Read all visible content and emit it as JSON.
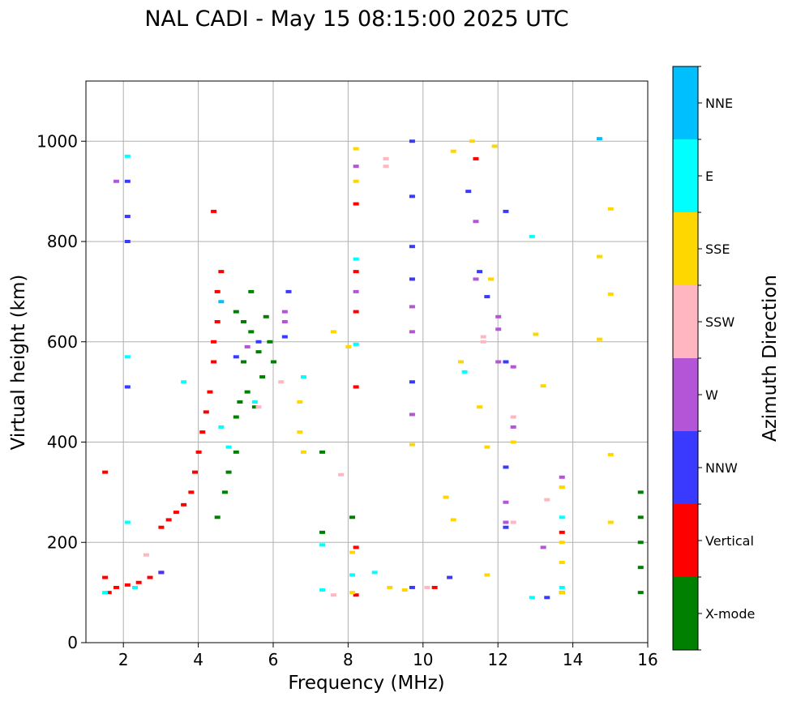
{
  "chart_data": {
    "type": "scatter",
    "title": "NAL CADI - May 15 08:15:00 2025 UTC",
    "xlabel": "Frequency (MHz)",
    "ylabel": "Virtual height (km)",
    "xlim": [
      1,
      16
    ],
    "ylim": [
      0,
      1120
    ],
    "xticks": [
      2,
      4,
      6,
      8,
      10,
      12,
      14,
      16
    ],
    "yticks": [
      0,
      200,
      400,
      600,
      800,
      1000
    ],
    "grid": true,
    "colorbar": {
      "label": "Azimuth Direction",
      "categories": [
        {
          "name": "X-mode",
          "color": "#008000"
        },
        {
          "name": "Vertical",
          "color": "#ff0000"
        },
        {
          "name": "NNW",
          "color": "#3a3aff"
        },
        {
          "name": "W",
          "color": "#b455d8"
        },
        {
          "name": "SSW",
          "color": "#ffb6c1"
        },
        {
          "name": "SSE",
          "color": "#ffd700"
        },
        {
          "name": "E",
          "color": "#00ffff"
        },
        {
          "name": "NNE",
          "color": "#00bfff"
        }
      ]
    },
    "series": [
      {
        "name": "X-mode",
        "points": [
          [
            4.5,
            250
          ],
          [
            4.7,
            300
          ],
          [
            4.8,
            340
          ],
          [
            5.0,
            380
          ],
          [
            5.0,
            450
          ],
          [
            5.1,
            480
          ],
          [
            5.2,
            560
          ],
          [
            5.3,
            500
          ],
          [
            5.4,
            620
          ],
          [
            5.5,
            470
          ],
          [
            5.6,
            580
          ],
          [
            5.7,
            530
          ],
          [
            5.8,
            650
          ],
          [
            5.9,
            600
          ],
          [
            6.0,
            560
          ],
          [
            5.2,
            640
          ],
          [
            5.4,
            700
          ],
          [
            5.0,
            660
          ],
          [
            7.3,
            380
          ],
          [
            7.3,
            220
          ],
          [
            8.1,
            250
          ],
          [
            15.8,
            300
          ],
          [
            15.8,
            250
          ],
          [
            15.8,
            200
          ],
          [
            15.8,
            150
          ],
          [
            15.8,
            100
          ]
        ]
      },
      {
        "name": "Vertical",
        "points": [
          [
            1.5,
            340
          ],
          [
            1.5,
            130
          ],
          [
            1.6,
            100
          ],
          [
            1.8,
            110
          ],
          [
            2.1,
            115
          ],
          [
            2.4,
            120
          ],
          [
            2.7,
            130
          ],
          [
            3.0,
            140
          ],
          [
            3.0,
            230
          ],
          [
            3.2,
            245
          ],
          [
            3.4,
            260
          ],
          [
            3.6,
            275
          ],
          [
            3.8,
            300
          ],
          [
            3.9,
            340
          ],
          [
            4.0,
            380
          ],
          [
            4.1,
            420
          ],
          [
            4.2,
            460
          ],
          [
            4.3,
            500
          ],
          [
            4.4,
            560
          ],
          [
            4.4,
            600
          ],
          [
            4.5,
            640
          ],
          [
            4.5,
            700
          ],
          [
            4.6,
            740
          ],
          [
            4.4,
            860
          ],
          [
            8.2,
            875
          ],
          [
            8.2,
            740
          ],
          [
            8.2,
            660
          ],
          [
            8.2,
            510
          ],
          [
            8.2,
            190
          ],
          [
            8.2,
            95
          ],
          [
            10.3,
            110
          ],
          [
            11.4,
            965
          ],
          [
            13.7,
            220
          ],
          [
            13.7,
            100
          ]
        ]
      },
      {
        "name": "NNW",
        "points": [
          [
            2.1,
            920
          ],
          [
            2.1,
            850
          ],
          [
            2.1,
            800
          ],
          [
            2.1,
            510
          ],
          [
            3.0,
            140
          ],
          [
            5.0,
            570
          ],
          [
            5.6,
            600
          ],
          [
            6.3,
            610
          ],
          [
            6.4,
            700
          ],
          [
            9.7,
            1000
          ],
          [
            9.7,
            890
          ],
          [
            9.7,
            790
          ],
          [
            9.7,
            725
          ],
          [
            9.7,
            520
          ],
          [
            10.7,
            130
          ],
          [
            11.2,
            900
          ],
          [
            11.5,
            740
          ],
          [
            11.7,
            690
          ],
          [
            12.2,
            860
          ],
          [
            12.2,
            560
          ],
          [
            12.2,
            350
          ],
          [
            12.2,
            230
          ],
          [
            13.3,
            90
          ],
          [
            9.7,
            110
          ]
        ]
      },
      {
        "name": "W",
        "points": [
          [
            1.8,
            920
          ],
          [
            5.3,
            590
          ],
          [
            6.3,
            660
          ],
          [
            6.3,
            640
          ],
          [
            8.2,
            950
          ],
          [
            8.2,
            700
          ],
          [
            9.7,
            670
          ],
          [
            9.7,
            620
          ],
          [
            9.7,
            455
          ],
          [
            11.4,
            840
          ],
          [
            11.4,
            725
          ],
          [
            12.0,
            650
          ],
          [
            12.0,
            625
          ],
          [
            12.0,
            560
          ],
          [
            12.4,
            550
          ],
          [
            12.4,
            430
          ],
          [
            12.2,
            280
          ],
          [
            12.2,
            240
          ],
          [
            13.2,
            190
          ],
          [
            13.7,
            330
          ]
        ]
      },
      {
        "name": "SSW",
        "points": [
          [
            2.6,
            175
          ],
          [
            5.6,
            470
          ],
          [
            6.2,
            520
          ],
          [
            7.8,
            335
          ],
          [
            7.6,
            95
          ],
          [
            9.0,
            965
          ],
          [
            9.0,
            950
          ],
          [
            11.6,
            610
          ],
          [
            11.6,
            600
          ],
          [
            12.4,
            450
          ],
          [
            12.4,
            240
          ],
          [
            13.3,
            285
          ],
          [
            13.7,
            310
          ],
          [
            10.1,
            110
          ]
        ]
      },
      {
        "name": "SSE",
        "points": [
          [
            6.7,
            480
          ],
          [
            6.7,
            420
          ],
          [
            6.8,
            380
          ],
          [
            7.6,
            620
          ],
          [
            8.0,
            590
          ],
          [
            8.2,
            985
          ],
          [
            8.2,
            920
          ],
          [
            8.1,
            180
          ],
          [
            8.1,
            100
          ],
          [
            9.1,
            110
          ],
          [
            9.5,
            105
          ],
          [
            9.7,
            395
          ],
          [
            10.6,
            290
          ],
          [
            10.8,
            980
          ],
          [
            10.8,
            245
          ],
          [
            11.0,
            560
          ],
          [
            11.3,
            1000
          ],
          [
            11.5,
            470
          ],
          [
            11.7,
            390
          ],
          [
            11.7,
            135
          ],
          [
            11.8,
            725
          ],
          [
            11.9,
            990
          ],
          [
            12.4,
            400
          ],
          [
            13.0,
            615
          ],
          [
            13.2,
            512
          ],
          [
            13.7,
            310
          ],
          [
            13.7,
            200
          ],
          [
            13.7,
            160
          ],
          [
            13.7,
            100
          ],
          [
            14.7,
            770
          ],
          [
            14.7,
            605
          ],
          [
            15.0,
            865
          ],
          [
            15.0,
            695
          ],
          [
            15.0,
            375
          ],
          [
            15.0,
            240
          ]
        ]
      },
      {
        "name": "E",
        "points": [
          [
            1.5,
            100
          ],
          [
            2.1,
            970
          ],
          [
            2.1,
            570
          ],
          [
            2.1,
            240
          ],
          [
            2.3,
            110
          ],
          [
            3.6,
            520
          ],
          [
            4.6,
            430
          ],
          [
            4.8,
            390
          ],
          [
            5.5,
            480
          ],
          [
            6.8,
            530
          ],
          [
            7.3,
            195
          ],
          [
            7.3,
            105
          ],
          [
            8.2,
            765
          ],
          [
            8.2,
            595
          ],
          [
            8.1,
            135
          ],
          [
            8.7,
            140
          ],
          [
            11.1,
            540
          ],
          [
            12.9,
            810
          ],
          [
            12.9,
            90
          ],
          [
            13.7,
            250
          ],
          [
            13.7,
            110
          ]
        ]
      },
      {
        "name": "NNE",
        "points": [
          [
            14.7,
            1005
          ],
          [
            4.6,
            680
          ]
        ]
      }
    ]
  }
}
